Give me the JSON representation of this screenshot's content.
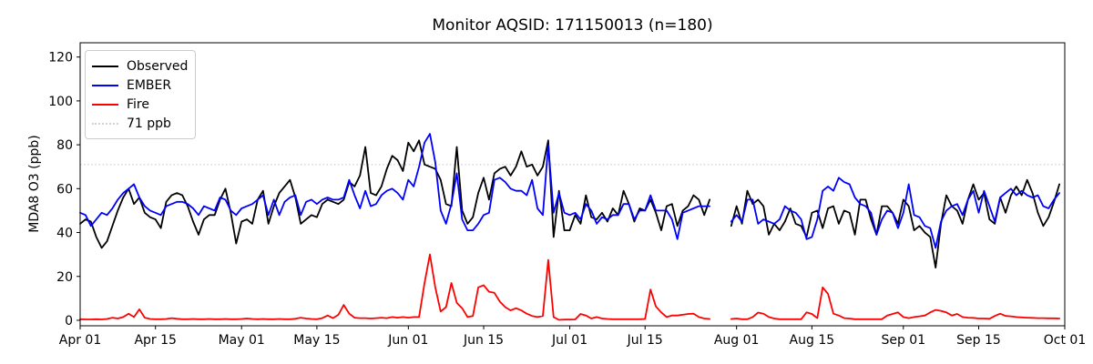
{
  "chart_data": {
    "type": "line",
    "title": "Monitor AQSID: 171150013 (n=180)",
    "ylabel": "MDA8 O3 (ppb)",
    "xlabel": "",
    "x_unit": "day_offset_from_Apr_01",
    "x_start_label": "Apr 01",
    "x_end_label": "Oct 01",
    "xlim_days": [
      0,
      183
    ],
    "ylim": [
      -2.5,
      126.5
    ],
    "grid": false,
    "legend_position": "upper-left",
    "background": "#ffffff",
    "spine_color": "#000000",
    "y_ticks": [
      0,
      20,
      40,
      60,
      80,
      100,
      120
    ],
    "x_ticks": [
      {
        "label": "Apr 01",
        "day": 0
      },
      {
        "label": "Apr 15",
        "day": 14
      },
      {
        "label": "May 01",
        "day": 30
      },
      {
        "label": "May 15",
        "day": 44
      },
      {
        "label": "Jun 01",
        "day": 61
      },
      {
        "label": "Jun 15",
        "day": 75
      },
      {
        "label": "Jul 01",
        "day": 91
      },
      {
        "label": "Jul 15",
        "day": 105
      },
      {
        "label": "Aug 01",
        "day": 122
      },
      {
        "label": "Aug 15",
        "day": 136
      },
      {
        "label": "Sep 01",
        "day": 153
      },
      {
        "label": "Sep 15",
        "day": 167
      },
      {
        "label": "Oct 01",
        "day": 183
      }
    ],
    "threshold": {
      "label": "71 ppb",
      "value": 71,
      "color": "#d3d3d3",
      "line_style": "dotted"
    },
    "missing_days": [
      "Jul 28",
      "Jul 29",
      "Jul 30"
    ],
    "legend": [
      {
        "label": "Observed",
        "color": "#000000",
        "dash": "solid"
      },
      {
        "label": "EMBER",
        "color": "#0000ff",
        "dash": "solid"
      },
      {
        "label": "Fire",
        "color": "#ff0000",
        "dash": "solid"
      },
      {
        "label": "71 ppb",
        "color": "#d3d3d3",
        "dash": "dotted"
      }
    ],
    "series": [
      {
        "name": "Observed",
        "color": "#000000",
        "values": [
          44,
          46,
          45,
          38,
          33,
          36,
          43,
          50,
          56,
          60,
          53,
          56,
          49,
          47,
          46,
          42,
          54,
          57,
          58,
          57,
          52,
          45,
          39,
          46,
          48,
          48,
          55,
          60,
          49,
          35,
          45,
          46,
          44,
          55,
          59,
          44,
          52,
          58,
          61,
          64,
          56,
          44,
          46,
          48,
          47,
          53,
          55,
          54,
          53,
          55,
          63,
          61,
          66,
          79,
          58,
          57,
          61,
          69,
          75,
          73,
          68,
          81,
          77,
          82,
          71,
          70,
          69,
          64,
          53,
          52,
          79,
          50,
          44,
          47,
          58,
          65,
          55,
          67,
          69,
          70,
          66,
          70,
          77,
          70,
          71,
          66,
          70,
          82,
          38,
          59,
          41,
          41,
          48,
          44,
          57,
          47,
          46,
          49,
          45,
          51,
          48,
          59,
          53,
          45,
          51,
          50,
          55,
          49,
          41,
          52,
          53,
          43,
          50,
          52,
          57,
          55,
          48,
          55,
          null,
          null,
          null,
          43,
          52,
          44,
          59,
          53,
          55,
          52,
          39,
          44,
          41,
          45,
          51,
          44,
          43,
          38,
          49,
          50,
          42,
          51,
          52,
          44,
          50,
          49,
          39,
          55,
          55,
          46,
          39,
          52,
          52,
          49,
          44,
          55,
          52,
          41,
          43,
          40,
          38,
          24,
          44,
          57,
          52,
          50,
          44,
          55,
          62,
          55,
          58,
          46,
          44,
          56,
          49,
          57,
          61,
          57,
          64,
          58,
          49,
          43,
          47,
          54,
          62
        ]
      },
      {
        "name": "EMBER",
        "color": "#0000ff",
        "values": [
          49,
          48,
          43,
          46,
          49,
          48,
          51,
          55,
          58,
          60,
          62,
          56,
          52,
          50,
          49,
          48,
          52,
          53,
          54,
          54,
          53,
          51,
          48,
          52,
          51,
          50,
          56,
          55,
          50,
          48,
          51,
          52,
          53,
          55,
          57,
          48,
          55,
          48,
          54,
          56,
          57,
          48,
          54,
          55,
          53,
          55,
          56,
          55,
          55,
          56,
          64,
          57,
          51,
          59,
          52,
          53,
          57,
          59,
          60,
          58,
          55,
          64,
          61,
          70,
          81,
          85,
          72,
          50,
          44,
          53,
          67,
          46,
          41,
          41,
          44,
          48,
          49,
          64,
          65,
          63,
          60,
          59,
          59,
          57,
          64,
          51,
          48,
          80,
          49,
          58,
          49,
          48,
          49,
          46,
          53,
          50,
          44,
          47,
          46,
          48,
          48,
          53,
          53,
          46,
          50,
          50,
          57,
          50,
          50,
          50,
          46,
          37,
          49,
          50,
          51,
          52,
          52,
          52,
          null,
          null,
          null,
          45,
          48,
          45,
          55,
          55,
          44,
          46,
          45,
          44,
          46,
          52,
          50,
          49,
          46,
          37,
          38,
          46,
          59,
          61,
          59,
          65,
          63,
          62,
          56,
          53,
          52,
          49,
          39,
          46,
          50,
          49,
          42,
          49,
          62,
          48,
          47,
          43,
          42,
          33,
          45,
          50,
          52,
          53,
          48,
          55,
          59,
          49,
          59,
          52,
          45,
          56,
          58,
          60,
          57,
          59,
          57,
          56,
          57,
          52,
          51,
          55,
          58
        ]
      },
      {
        "name": "Fire",
        "color": "#ff0000",
        "values": [
          0.5,
          0.4,
          0.4,
          0.5,
          0.4,
          0.6,
          1.2,
          0.8,
          1.5,
          3,
          1.5,
          5,
          1.2,
          0.6,
          0.5,
          0.5,
          0.6,
          1,
          0.7,
          0.5,
          0.5,
          0.6,
          0.5,
          0.5,
          0.6,
          0.5,
          0.5,
          0.6,
          0.5,
          0.5,
          0.6,
          0.8,
          0.6,
          0.5,
          0.6,
          0.5,
          0.5,
          0.6,
          0.5,
          0.5,
          0.7,
          1.2,
          0.8,
          0.6,
          0.5,
          1,
          2.2,
          1,
          2.5,
          7,
          3,
          1.2,
          1,
          1,
          0.8,
          1,
          1.2,
          1,
          1.5,
          1.2,
          1.5,
          1.2,
          1.5,
          1.5,
          17,
          30,
          15,
          4,
          6,
          17,
          8,
          5.5,
          1.5,
          2,
          15,
          16,
          13,
          12.5,
          8.5,
          6,
          4.5,
          5.5,
          4.5,
          3,
          2,
          1.5,
          2,
          27.5,
          1.5,
          0.2,
          0.3,
          0.3,
          0.4,
          2.9,
          2.2,
          0.8,
          1.5,
          0.8,
          0.6,
          0.5,
          0.5,
          0.5,
          0.5,
          0.5,
          0.5,
          0.6,
          14,
          6.3,
          3.6,
          1.5,
          2.2,
          2.2,
          2.5,
          2.9,
          3,
          1.5,
          0.8,
          0.6,
          null,
          null,
          null,
          0.6,
          0.8,
          0.5,
          0.5,
          1.5,
          3.5,
          3,
          1.5,
          0.8,
          0.5,
          0.5,
          0.5,
          0.5,
          0.5,
          3.6,
          2.9,
          1,
          15,
          12,
          3,
          2.2,
          1,
          0.8,
          0.5,
          0.5,
          0.5,
          0.5,
          0.5,
          0.5,
          2.2,
          2.9,
          3.6,
          1.5,
          1,
          1.5,
          1.8,
          2.2,
          3.6,
          4.7,
          4.3,
          3.6,
          2.2,
          2.9,
          1.5,
          1.2,
          1.1,
          0.8,
          0.8,
          0.7,
          2,
          3,
          2,
          1.8,
          1.5,
          1.3,
          1.2,
          1.1,
          1,
          1,
          0.9,
          0.9,
          0.8
        ]
      }
    ]
  }
}
